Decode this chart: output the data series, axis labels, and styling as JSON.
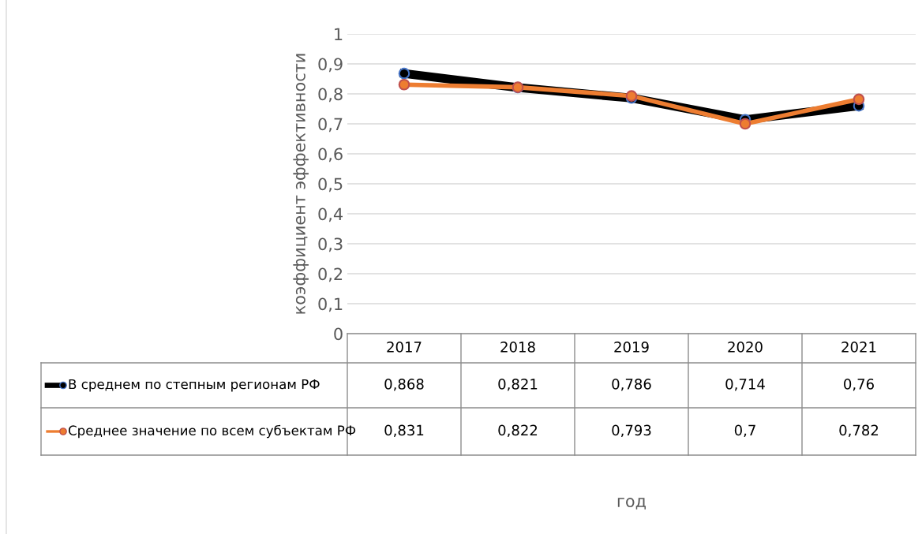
{
  "chart_data": {
    "type": "line",
    "categories": [
      "2017",
      "2018",
      "2019",
      "2020",
      "2021"
    ],
    "series": [
      {
        "name": "В среднем по степным регионам РФ",
        "color": "#000000",
        "values": [
          0.868,
          0.821,
          0.786,
          0.714,
          0.76
        ],
        "value_labels": [
          "0,868",
          "0,821",
          "0,786",
          "0,714",
          "0,76"
        ]
      },
      {
        "name": "Среднее значение по всем субъектам РФ",
        "color": "#ed7d31",
        "values": [
          0.831,
          0.822,
          0.793,
          0.7,
          0.782
        ],
        "value_labels": [
          "0,831",
          "0,822",
          "0,793",
          "0,7",
          "0,782"
        ]
      }
    ],
    "annotations": [
      "год"
    ],
    "ylabel": "коэффициент эффективности",
    "ylim": [
      0,
      1
    ],
    "yticks": [
      0,
      {
        "value": 0.1,
        "label": "0,1"
      },
      {
        "value": 0.2,
        "label": "0,2"
      },
      {
        "value": 0.3,
        "label": "0,3"
      },
      {
        "value": 0.4,
        "label": "0,4"
      },
      {
        "value": 0.5,
        "label": "0,5"
      },
      {
        "value": 0.6,
        "label": "0,6"
      },
      {
        "value": 0.7,
        "label": "0,7"
      },
      {
        "value": 0.8,
        "label": "0,8"
      },
      {
        "value": 0.9,
        "label": "0,9"
      },
      1
    ],
    "grid": "y",
    "legend": "bottom",
    "marker": "circle",
    "tick_labels": "y",
    "data_labels": true
  }
}
